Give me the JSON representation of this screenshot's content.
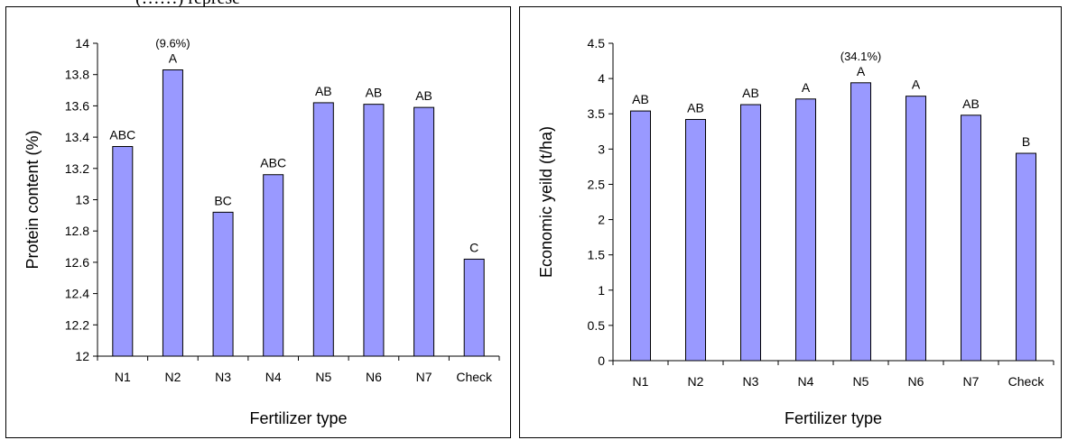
{
  "top_strip_text": "(……) represe",
  "colors": {
    "bar_fill": "#9999ff",
    "bar_stroke": "#000000",
    "axis": "#000000"
  },
  "chart_data": [
    {
      "type": "bar",
      "title": "",
      "xlabel": "Fertilizer type",
      "ylabel": "Protein content (%)",
      "ylim": [
        12,
        14
      ],
      "yticks": [
        12,
        12.2,
        12.4,
        12.6,
        12.8,
        13,
        13.2,
        13.4,
        13.6,
        13.8,
        14
      ],
      "ytick_labels": [
        "12",
        "12.2",
        "12.4",
        "12.6",
        "12.8",
        "13",
        "13.2",
        "13.4",
        "13.6",
        "13.8",
        "14"
      ],
      "grid": false,
      "categories": [
        "N1",
        "N2",
        "N3",
        "N4",
        "N5",
        "N6",
        "N7",
        "Check"
      ],
      "values": [
        13.34,
        13.83,
        12.92,
        13.16,
        13.62,
        13.61,
        13.59,
        12.62
      ],
      "data_labels": [
        "ABC",
        "A",
        "BC",
        "ABC",
        "AB",
        "AB",
        "AB",
        "C"
      ],
      "annotations": [
        {
          "category": "N2",
          "text": "(9.6%)"
        }
      ]
    },
    {
      "type": "bar",
      "title": "",
      "xlabel": "Fertilizer type",
      "ylabel": "Economic yeild (t/ha)",
      "ylim": [
        0,
        4.5
      ],
      "yticks": [
        0,
        0.5,
        1,
        1.5,
        2,
        2.5,
        3,
        3.5,
        4,
        4.5
      ],
      "ytick_labels": [
        "0",
        "0.5",
        "1",
        "1.5",
        "2",
        "2.5",
        "3",
        "3.5",
        "4",
        "4.5"
      ],
      "grid": false,
      "categories": [
        "N1",
        "N2",
        "N3",
        "N4",
        "N5",
        "N6",
        "N7",
        "Check"
      ],
      "values": [
        3.54,
        3.42,
        3.63,
        3.71,
        3.94,
        3.75,
        3.48,
        2.94
      ],
      "data_labels": [
        "AB",
        "AB",
        "AB",
        "A",
        "A",
        "A",
        "AB",
        "B"
      ],
      "annotations": [
        {
          "category": "N5",
          "text": "(34.1%)"
        }
      ]
    }
  ]
}
